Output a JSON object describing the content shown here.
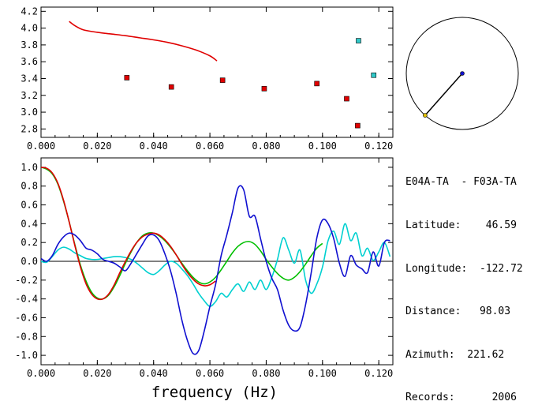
{
  "station_panel": {
    "title": "E04A-TA  - F03A-TA",
    "rows": [
      {
        "label": "Latitude:",
        "value": "46.59"
      },
      {
        "label": "Longitude:",
        "value": "-122.72"
      },
      {
        "label": "Distance:",
        "value": "98.03"
      },
      {
        "label": "Azimuth:",
        "value": "221.62"
      },
      {
        "label": "Records:",
        "value": "2006"
      }
    ]
  },
  "azimuth_dial": {
    "azimuth_deg": 221.62
  },
  "chart_data": [
    {
      "type": "scatter",
      "title": "",
      "xlabel": "",
      "ylabel": "",
      "xlim": [
        0.0,
        0.125
      ],
      "ylim": [
        2.7,
        4.25
      ],
      "x_ticks": [
        "0.000",
        "0.020",
        "0.040",
        "0.060",
        "0.080",
        "0.100",
        "0.120"
      ],
      "y_ticks": [
        "2.8",
        "3.0",
        "3.2",
        "3.4",
        "3.6",
        "3.8",
        "4.0",
        "4.2"
      ],
      "x_tick_values": [
        0.0,
        0.02,
        0.04,
        0.06,
        0.08,
        0.1,
        0.12
      ],
      "y_tick_values": [
        2.8,
        3.0,
        3.2,
        3.4,
        3.6,
        3.8,
        4.0,
        4.2
      ],
      "series": [
        {
          "kind": "line",
          "color": "#e00000",
          "x": [
            0.01,
            0.012,
            0.015,
            0.02,
            0.025,
            0.03,
            0.035,
            0.04,
            0.045,
            0.05,
            0.055,
            0.06,
            0.0625
          ],
          "y": [
            4.08,
            4.03,
            3.98,
            3.95,
            3.93,
            3.91,
            3.885,
            3.86,
            3.83,
            3.79,
            3.74,
            3.67,
            3.61
          ]
        },
        {
          "kind": "points",
          "color": "#e00000",
          "x": [
            0.0305,
            0.0463,
            0.0645,
            0.0793,
            0.098,
            0.1086,
            0.1125
          ],
          "y": [
            3.41,
            3.3,
            3.38,
            3.28,
            3.34,
            3.16,
            2.84
          ]
        },
        {
          "kind": "points",
          "color": "#30c8c8",
          "x": [
            0.1128,
            0.1182
          ],
          "y": [
            3.85,
            3.44
          ]
        }
      ]
    },
    {
      "type": "line",
      "title": "",
      "xlabel": "frequency (Hz)",
      "ylabel": "",
      "xlim": [
        0.0,
        0.125
      ],
      "ylim": [
        -1.1,
        1.1
      ],
      "x_ticks": [
        "0.000",
        "0.020",
        "0.040",
        "0.060",
        "0.080",
        "0.100",
        "0.120"
      ],
      "y_ticks": [
        "1.0",
        "0.8",
        "0.6",
        "0.4",
        "0.2",
        "0.0",
        "-0.2",
        "-0.4",
        "-0.6",
        "-0.8",
        "-1.0"
      ],
      "x_tick_values": [
        0.0,
        0.02,
        0.04,
        0.06,
        0.08,
        0.1,
        0.12
      ],
      "y_tick_values": [
        1.0,
        0.8,
        0.6,
        0.4,
        0.2,
        0.0,
        -0.2,
        -0.4,
        -0.6,
        -0.8,
        -1.0
      ],
      "zero_line": true,
      "series": [
        {
          "color": "#00d0d0",
          "x": [
            0.0,
            0.002,
            0.004,
            0.006,
            0.008,
            0.01,
            0.012,
            0.014,
            0.016,
            0.018,
            0.02,
            0.022,
            0.024,
            0.026,
            0.028,
            0.03,
            0.032,
            0.034,
            0.036,
            0.038,
            0.04,
            0.042,
            0.044,
            0.046,
            0.048,
            0.05,
            0.052,
            0.054,
            0.056,
            0.058,
            0.06,
            0.062,
            0.064,
            0.066,
            0.068,
            0.07,
            0.072,
            0.074,
            0.076,
            0.078,
            0.08,
            0.082,
            0.084,
            0.086,
            0.088,
            0.09,
            0.092,
            0.094,
            0.096,
            0.098,
            0.1,
            0.102,
            0.104,
            0.106,
            0.108,
            0.11,
            0.112,
            0.114,
            0.116,
            0.118,
            0.12,
            0.122,
            0.124
          ],
          "y": [
            0.0,
            -0.01,
            0.05,
            0.12,
            0.15,
            0.13,
            0.09,
            0.06,
            0.03,
            0.02,
            0.02,
            0.03,
            0.04,
            0.05,
            0.05,
            0.04,
            0.02,
            -0.02,
            -0.07,
            -0.12,
            -0.14,
            -0.1,
            -0.04,
            0.0,
            -0.02,
            -0.08,
            -0.15,
            -0.24,
            -0.34,
            -0.42,
            -0.48,
            -0.43,
            -0.34,
            -0.38,
            -0.3,
            -0.24,
            -0.32,
            -0.22,
            -0.3,
            -0.2,
            -0.3,
            -0.17,
            0.02,
            0.25,
            0.12,
            -0.02,
            0.12,
            -0.2,
            -0.34,
            -0.24,
            -0.06,
            0.22,
            0.32,
            0.18,
            0.4,
            0.22,
            0.3,
            0.06,
            0.14,
            0.01,
            0.1,
            0.2,
            0.05
          ]
        },
        {
          "color": "#00c000",
          "x": [
            0.0,
            0.002,
            0.004,
            0.006,
            0.008,
            0.01,
            0.012,
            0.014,
            0.016,
            0.018,
            0.02,
            0.022,
            0.024,
            0.026,
            0.028,
            0.03,
            0.032,
            0.034,
            0.036,
            0.038,
            0.04,
            0.042,
            0.044,
            0.046,
            0.048,
            0.05,
            0.052,
            0.054,
            0.056,
            0.058,
            0.06,
            0.062,
            0.064,
            0.066,
            0.068,
            0.07,
            0.072,
            0.074,
            0.076,
            0.078,
            0.08,
            0.082,
            0.084,
            0.086,
            0.088,
            0.09,
            0.092,
            0.094,
            0.096,
            0.098,
            0.1
          ],
          "y": [
            1.0,
            0.98,
            0.93,
            0.82,
            0.64,
            0.42,
            0.18,
            -0.04,
            -0.21,
            -0.33,
            -0.39,
            -0.4,
            -0.36,
            -0.27,
            -0.15,
            -0.02,
            0.1,
            0.2,
            0.27,
            0.3,
            0.3,
            0.27,
            0.22,
            0.15,
            0.07,
            -0.02,
            -0.1,
            -0.17,
            -0.22,
            -0.24,
            -0.22,
            -0.17,
            -0.09,
            0.0,
            0.09,
            0.16,
            0.2,
            0.21,
            0.18,
            0.11,
            0.02,
            -0.06,
            -0.13,
            -0.18,
            -0.2,
            -0.17,
            -0.11,
            -0.03,
            0.06,
            0.14,
            0.19
          ]
        },
        {
          "color": "#e00000",
          "x": [
            0.0,
            0.002,
            0.004,
            0.006,
            0.008,
            0.01,
            0.012,
            0.014,
            0.016,
            0.018,
            0.02,
            0.022,
            0.024,
            0.026,
            0.028,
            0.03,
            0.032,
            0.034,
            0.036,
            0.038,
            0.04,
            0.042,
            0.044,
            0.046,
            0.048,
            0.05,
            0.052,
            0.054,
            0.056,
            0.058,
            0.06,
            0.062
          ],
          "y": [
            1.0,
            0.99,
            0.94,
            0.83,
            0.65,
            0.42,
            0.17,
            -0.06,
            -0.24,
            -0.35,
            -0.4,
            -0.4,
            -0.35,
            -0.25,
            -0.12,
            0.0,
            0.11,
            0.2,
            0.26,
            0.29,
            0.3,
            0.28,
            0.23,
            0.16,
            0.07,
            -0.03,
            -0.12,
            -0.19,
            -0.24,
            -0.26,
            -0.25,
            -0.21
          ]
        },
        {
          "color": "#1010d0",
          "x": [
            0.0,
            0.002,
            0.004,
            0.006,
            0.008,
            0.01,
            0.012,
            0.014,
            0.016,
            0.018,
            0.02,
            0.022,
            0.024,
            0.026,
            0.028,
            0.03,
            0.032,
            0.034,
            0.036,
            0.038,
            0.04,
            0.042,
            0.044,
            0.046,
            0.048,
            0.05,
            0.052,
            0.054,
            0.056,
            0.058,
            0.06,
            0.062,
            0.064,
            0.066,
            0.068,
            0.07,
            0.072,
            0.074,
            0.076,
            0.078,
            0.08,
            0.082,
            0.084,
            0.086,
            0.088,
            0.09,
            0.092,
            0.094,
            0.096,
            0.098,
            0.1,
            0.102,
            0.104,
            0.106,
            0.108,
            0.11,
            0.112,
            0.114,
            0.116,
            0.118,
            0.12,
            0.122,
            0.124
          ],
          "y": [
            0.03,
            0.0,
            0.06,
            0.18,
            0.26,
            0.3,
            0.28,
            0.22,
            0.14,
            0.12,
            0.08,
            0.02,
            0.0,
            -0.02,
            -0.06,
            -0.1,
            -0.02,
            0.08,
            0.18,
            0.27,
            0.28,
            0.22,
            0.08,
            -0.1,
            -0.34,
            -0.62,
            -0.84,
            -0.98,
            -0.95,
            -0.74,
            -0.48,
            -0.25,
            0.06,
            0.28,
            0.52,
            0.78,
            0.76,
            0.48,
            0.48,
            0.24,
            0.0,
            -0.18,
            -0.3,
            -0.52,
            -0.68,
            -0.74,
            -0.7,
            -0.46,
            -0.12,
            0.25,
            0.44,
            0.4,
            0.24,
            -0.02,
            -0.16,
            0.06,
            -0.04,
            -0.08,
            -0.12,
            0.1,
            -0.05,
            0.2,
            0.22
          ]
        }
      ]
    }
  ]
}
